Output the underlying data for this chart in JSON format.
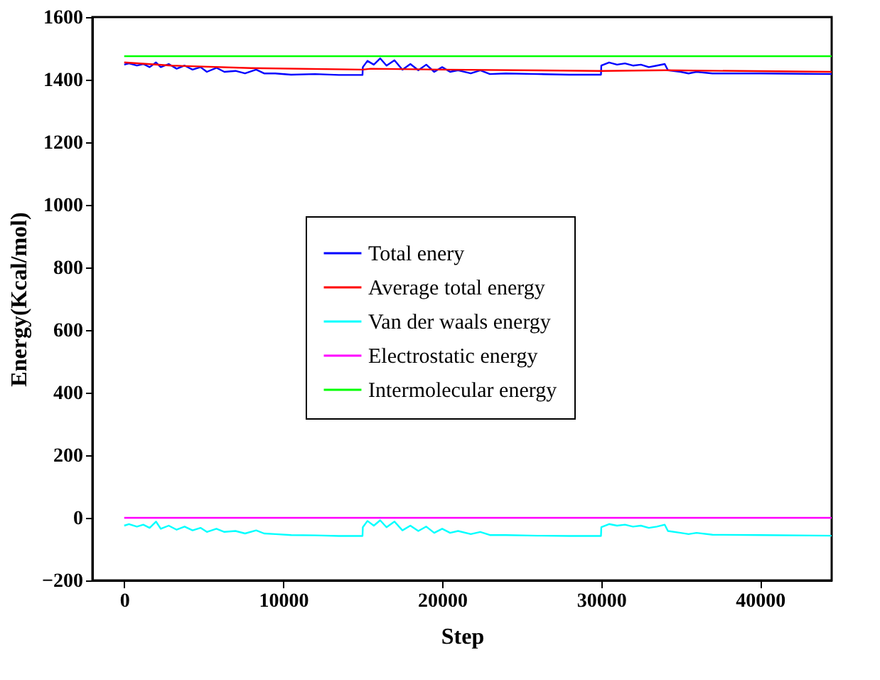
{
  "chart_data": {
    "type": "line",
    "xlabel": "Step",
    "ylabel": "Energy(Kcal/mol)",
    "xlim": [
      -2000,
      44500
    ],
    "ylim": [
      -200,
      1600
    ],
    "xticks": [
      0,
      10000,
      20000,
      30000,
      40000
    ],
    "yticks": [
      -200,
      0,
      200,
      400,
      600,
      800,
      1000,
      1200,
      1400,
      1600
    ],
    "grid": false,
    "legend": "center",
    "marker": "none",
    "line_style": "solid",
    "series": [
      {
        "name": "Total enery",
        "color": "#0000ff",
        "x": [
          0,
          300,
          800,
          1200,
          1600,
          2000,
          2300,
          2800,
          3300,
          3800,
          4300,
          4800,
          5200,
          5800,
          6300,
          7000,
          7600,
          8300,
          8800,
          9500,
          10500,
          12000,
          13500,
          14990,
          15010,
          15300,
          15700,
          16100,
          16500,
          17000,
          17500,
          18000,
          18500,
          19000,
          19500,
          20000,
          20500,
          21000,
          21800,
          22400,
          23000,
          24000,
          26000,
          28000,
          29990,
          30010,
          30500,
          31000,
          31500,
          32000,
          32500,
          33000,
          33500,
          34000,
          34200,
          35000,
          35500,
          36000,
          37000,
          40000,
          44500
        ],
        "values": [
          1448,
          1452,
          1445,
          1450,
          1440,
          1455,
          1440,
          1450,
          1435,
          1445,
          1432,
          1440,
          1425,
          1438,
          1425,
          1428,
          1420,
          1432,
          1420,
          1420,
          1416,
          1418,
          1415,
          1415,
          1440,
          1460,
          1448,
          1468,
          1445,
          1462,
          1432,
          1450,
          1430,
          1448,
          1425,
          1440,
          1425,
          1430,
          1420,
          1430,
          1418,
          1420,
          1418,
          1416,
          1416,
          1445,
          1455,
          1448,
          1452,
          1445,
          1448,
          1440,
          1445,
          1450,
          1430,
          1425,
          1420,
          1425,
          1420,
          1420,
          1418
        ]
      },
      {
        "name": "Average total energy",
        "color": "#ff0000",
        "x": [
          0,
          3000,
          8000,
          15000,
          15500,
          20000,
          30000,
          34000,
          44500
        ],
        "values": [
          1455,
          1445,
          1437,
          1432,
          1435,
          1432,
          1428,
          1430,
          1425
        ]
      },
      {
        "name": "Van der waals energy",
        "color": "#00ffff",
        "x": [
          0,
          300,
          800,
          1200,
          1600,
          2000,
          2300,
          2800,
          3300,
          3800,
          4300,
          4800,
          5200,
          5800,
          6300,
          7000,
          7600,
          8300,
          8800,
          9500,
          10500,
          12000,
          13500,
          14990,
          15010,
          15300,
          15700,
          16100,
          16500,
          17000,
          17500,
          18000,
          18500,
          19000,
          19500,
          20000,
          20500,
          21000,
          21800,
          22400,
          23000,
          24000,
          26000,
          28000,
          29990,
          30010,
          30500,
          31000,
          31500,
          32000,
          32500,
          33000,
          33500,
          34000,
          34200,
          35000,
          35500,
          36000,
          37000,
          40000,
          44500
        ],
        "values": [
          -25,
          -20,
          -28,
          -22,
          -32,
          -12,
          -35,
          -25,
          -38,
          -28,
          -40,
          -32,
          -45,
          -35,
          -45,
          -42,
          -50,
          -40,
          -50,
          -52,
          -55,
          -56,
          -58,
          -58,
          -30,
          -10,
          -25,
          -8,
          -30,
          -12,
          -40,
          -25,
          -42,
          -28,
          -48,
          -35,
          -48,
          -42,
          -52,
          -45,
          -55,
          -55,
          -57,
          -58,
          -58,
          -30,
          -20,
          -25,
          -22,
          -28,
          -25,
          -32,
          -28,
          -22,
          -42,
          -48,
          -52,
          -48,
          -54,
          -55,
          -57
        ]
      },
      {
        "name": "Electrostatic energy",
        "color": "#ff00ff",
        "x": [
          0,
          44500
        ],
        "values": [
          0,
          0
        ]
      },
      {
        "name": "Intermolecular energy",
        "color": "#00ff00",
        "x": [
          0,
          44500
        ],
        "values": [
          1475,
          1475
        ]
      }
    ]
  }
}
